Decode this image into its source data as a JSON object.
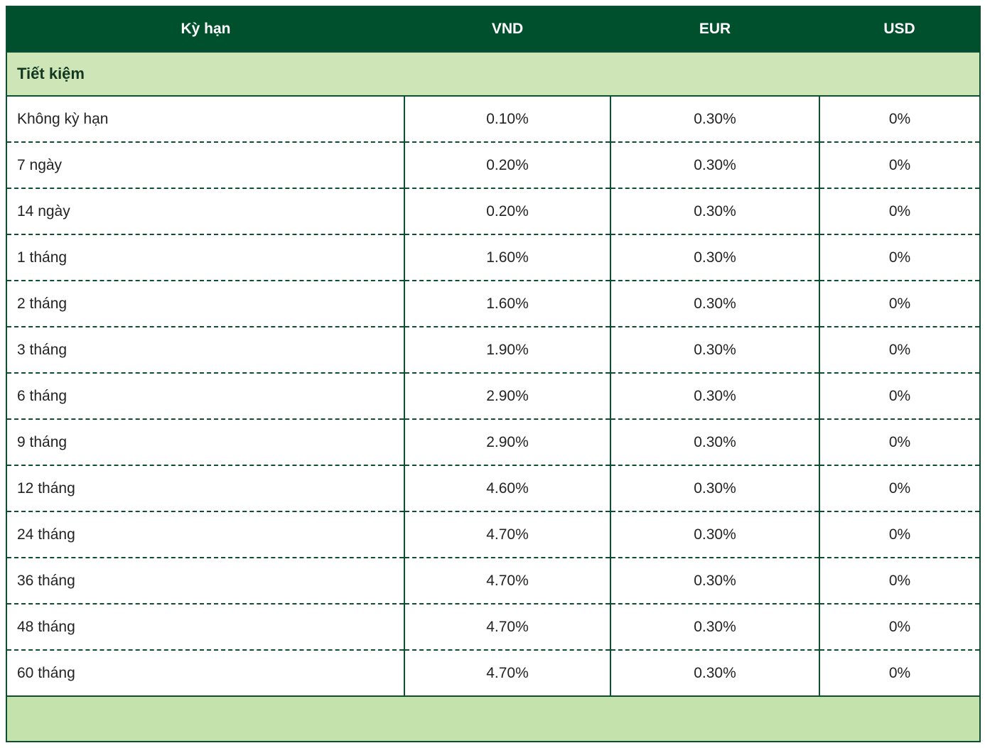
{
  "theme": {
    "header-bg": "#00502e",
    "header-fg": "#ffffff",
    "section-bg": "#cde5b7",
    "section-fg": "#12381f",
    "section2-bg": "#c3e2ac",
    "border": "#0e4e31",
    "row-bg": "#ffffff",
    "row-fg": "#232323"
  },
  "table": {
    "columns": {
      "term": "Kỳ hạn",
      "vnd": "VND",
      "eur": "EUR",
      "usd": "USD"
    },
    "section": {
      "label": "Tiết kiệm"
    },
    "rows": [
      {
        "term": "Không kỳ hạn",
        "vnd": "0.10%",
        "eur": "0.30%",
        "usd": "0%"
      },
      {
        "term": "7 ngày",
        "vnd": "0.20%",
        "eur": "0.30%",
        "usd": "0%"
      },
      {
        "term": "14 ngày",
        "vnd": "0.20%",
        "eur": "0.30%",
        "usd": "0%"
      },
      {
        "term": "1 tháng",
        "vnd": "1.60%",
        "eur": "0.30%",
        "usd": "0%"
      },
      {
        "term": "2 tháng",
        "vnd": "1.60%",
        "eur": "0.30%",
        "usd": "0%"
      },
      {
        "term": "3 tháng",
        "vnd": "1.90%",
        "eur": "0.30%",
        "usd": "0%"
      },
      {
        "term": "6 tháng",
        "vnd": "2.90%",
        "eur": "0.30%",
        "usd": "0%"
      },
      {
        "term": "9 tháng",
        "vnd": "2.90%",
        "eur": "0.30%",
        "usd": "0%"
      },
      {
        "term": "12 tháng",
        "vnd": "4.60%",
        "eur": "0.30%",
        "usd": "0%"
      },
      {
        "term": "24 tháng",
        "vnd": "4.70%",
        "eur": "0.30%",
        "usd": "0%"
      },
      {
        "term": "36 tháng",
        "vnd": "4.70%",
        "eur": "0.30%",
        "usd": "0%"
      },
      {
        "term": "48 tháng",
        "vnd": "4.70%",
        "eur": "0.30%",
        "usd": "0%"
      },
      {
        "term": "60 tháng",
        "vnd": "4.70%",
        "eur": "0.30%",
        "usd": "0%"
      }
    ]
  }
}
